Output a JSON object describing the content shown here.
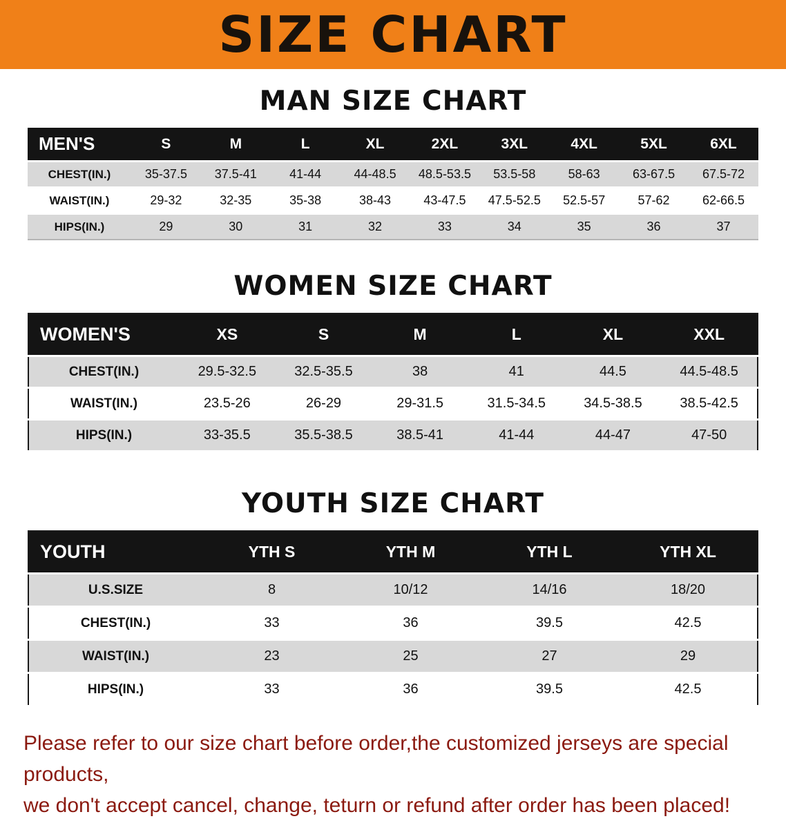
{
  "banner": {
    "title": "SIZE CHART",
    "bg_color": "#F08018",
    "title_color": "#18120C"
  },
  "sections": [
    {
      "id": "men",
      "title": "MAN SIZE CHART",
      "table": {
        "header": [
          "MEN'S",
          "S",
          "M",
          "L",
          "XL",
          "2XL",
          "3XL",
          "4XL",
          "5XL",
          "6XL"
        ],
        "rows": [
          [
            "CHEST(IN.)",
            "35-37.5",
            "37.5-41",
            "41-44",
            "44-48.5",
            "48.5-53.5",
            "53.5-58",
            "58-63",
            "63-67.5",
            "67.5-72"
          ],
          [
            "WAIST(IN.)",
            "29-32",
            "32-35",
            "35-38",
            "38-43",
            "43-47.5",
            "47.5-52.5",
            "52.5-57",
            "57-62",
            "62-66.5"
          ],
          [
            "HIPS(IN.)",
            "29",
            "30",
            "31",
            "32",
            "33",
            "34",
            "35",
            "36",
            "37"
          ]
        ]
      }
    },
    {
      "id": "women",
      "title": "WOMEN SIZE CHART",
      "table": {
        "header": [
          "WOMEN'S",
          "XS",
          "S",
          "M",
          "L",
          "XL",
          "XXL"
        ],
        "rows": [
          [
            "CHEST(IN.)",
            "29.5-32.5",
            "32.5-35.5",
            "38",
            "41",
            "44.5",
            "44.5-48.5"
          ],
          [
            "WAIST(IN.)",
            "23.5-26",
            "26-29",
            "29-31.5",
            "31.5-34.5",
            "34.5-38.5",
            "38.5-42.5"
          ],
          [
            "HIPS(IN.)",
            "33-35.5",
            "35.5-38.5",
            "38.5-41",
            "41-44",
            "44-47",
            "47-50"
          ]
        ]
      }
    },
    {
      "id": "youth",
      "title": "YOUTH SIZE CHART",
      "table": {
        "header": [
          "YOUTH",
          "YTH S",
          "YTH M",
          "YTH L",
          "YTH XL"
        ],
        "rows": [
          [
            "U.S.SIZE",
            "8",
            "10/12",
            "14/16",
            "18/20"
          ],
          [
            "CHEST(IN.)",
            "33",
            "36",
            "39.5",
            "42.5"
          ],
          [
            "WAIST(IN.)",
            "23",
            "25",
            "27",
            "29"
          ],
          [
            "HIPS(IN.)",
            "33",
            "36",
            "39.5",
            "42.5"
          ]
        ]
      }
    }
  ],
  "footer": {
    "line1": "Please refer to our size chart before order,the customized jerseys are special products,",
    "line2": "we don't accept cancel, change, teturn or refund after order has been placed!",
    "text_color": "#8B1A10"
  },
  "colors": {
    "table_header_bg": "#141414",
    "table_header_text": "#FFFFFF",
    "stripe_row_bg": "#D8D8D8"
  }
}
